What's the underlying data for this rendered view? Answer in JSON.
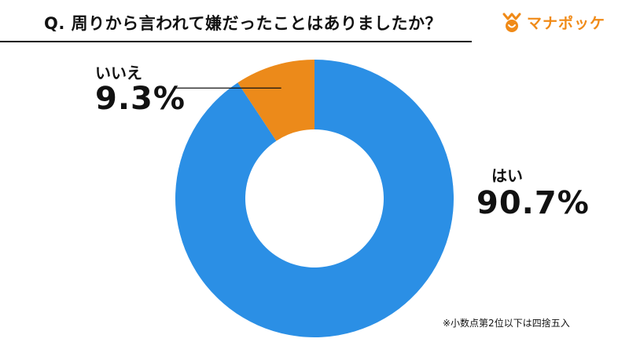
{
  "title": "Q. 周りから言われて嫌だったことはありましたか？",
  "logo": {
    "text": "マナポッケ",
    "icon": "manapocke-logo-icon",
    "color": "#f08a17"
  },
  "note": "※小数点第2位以下は四捨五入",
  "chart_data": {
    "type": "pie",
    "donut": true,
    "categories": [
      "はい",
      "いいえ"
    ],
    "values": [
      90.7,
      9.3
    ],
    "value_labels": [
      "90.7%",
      "9.3%"
    ],
    "colors": [
      "#2b8fe5",
      "#ec8a1a"
    ],
    "title": "Q. 周りから言われて嫌だったことはありましたか？",
    "legend": "none"
  }
}
